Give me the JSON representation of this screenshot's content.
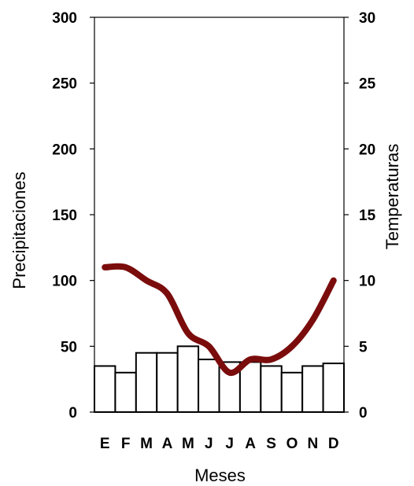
{
  "chart_data": {
    "type": "bar+line",
    "categories": [
      "E",
      "F",
      "M",
      "A",
      "M",
      "J",
      "J",
      "A",
      "S",
      "O",
      "N",
      "D"
    ],
    "series": [
      {
        "type": "bar",
        "axis": "left",
        "values": [
          35,
          30,
          45,
          45,
          50,
          40,
          38,
          38,
          35,
          30,
          35,
          37
        ],
        "color": "#ffffff",
        "stroke": "#000000"
      },
      {
        "type": "line",
        "axis": "right",
        "values": [
          11,
          11,
          10,
          9,
          6,
          5,
          3,
          4,
          4,
          5,
          7,
          10
        ],
        "color": "#7b0c0c"
      }
    ],
    "xlabel": "Meses",
    "ylabel": "Precipitaciones",
    "y2label": "Temperaturas",
    "ylim": [
      0,
      300
    ],
    "y2lim": [
      0,
      30
    ],
    "yticks": [
      "0",
      "50",
      "100",
      "150",
      "200",
      "250",
      "300"
    ],
    "y2ticks": [
      "0",
      "5",
      "10",
      "15",
      "20",
      "25",
      "30"
    ],
    "grid": false,
    "legend": "none"
  }
}
